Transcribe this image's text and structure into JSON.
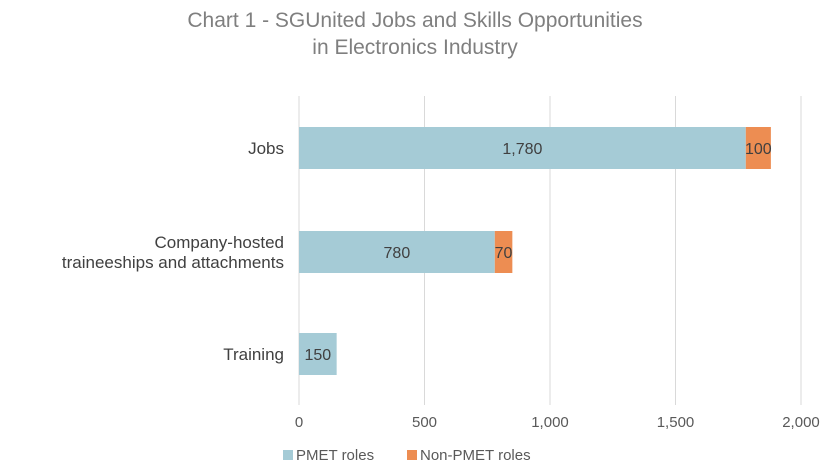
{
  "chart_data": {
    "type": "bar",
    "orientation": "horizontal",
    "stacked": true,
    "title_lines": [
      "Chart 1 - SGUnited Jobs and Skills Opportunities",
      "in Electronics Industry"
    ],
    "categories": [
      {
        "lines": [
          "Jobs"
        ]
      },
      {
        "lines": [
          "Company-hosted",
          "traineeships and attachments"
        ]
      },
      {
        "lines": [
          "Training"
        ]
      }
    ],
    "series": [
      {
        "name": "PMET roles",
        "color": "#a5cbd6",
        "values": [
          1780,
          780,
          150
        ],
        "labels": [
          "1,780",
          "780",
          "150"
        ]
      },
      {
        "name": "Non-PMET roles",
        "color": "#ed8d52",
        "values": [
          100,
          70,
          0
        ],
        "labels": [
          "100",
          "70",
          ""
        ]
      }
    ],
    "xlim": [
      0,
      2000
    ],
    "x_ticks": [
      0,
      500,
      1000,
      1500,
      2000
    ],
    "x_tick_labels": [
      "0",
      "500",
      "1,000",
      "1,500",
      "2,000"
    ],
    "grid": true,
    "legend_position": "bottom"
  }
}
